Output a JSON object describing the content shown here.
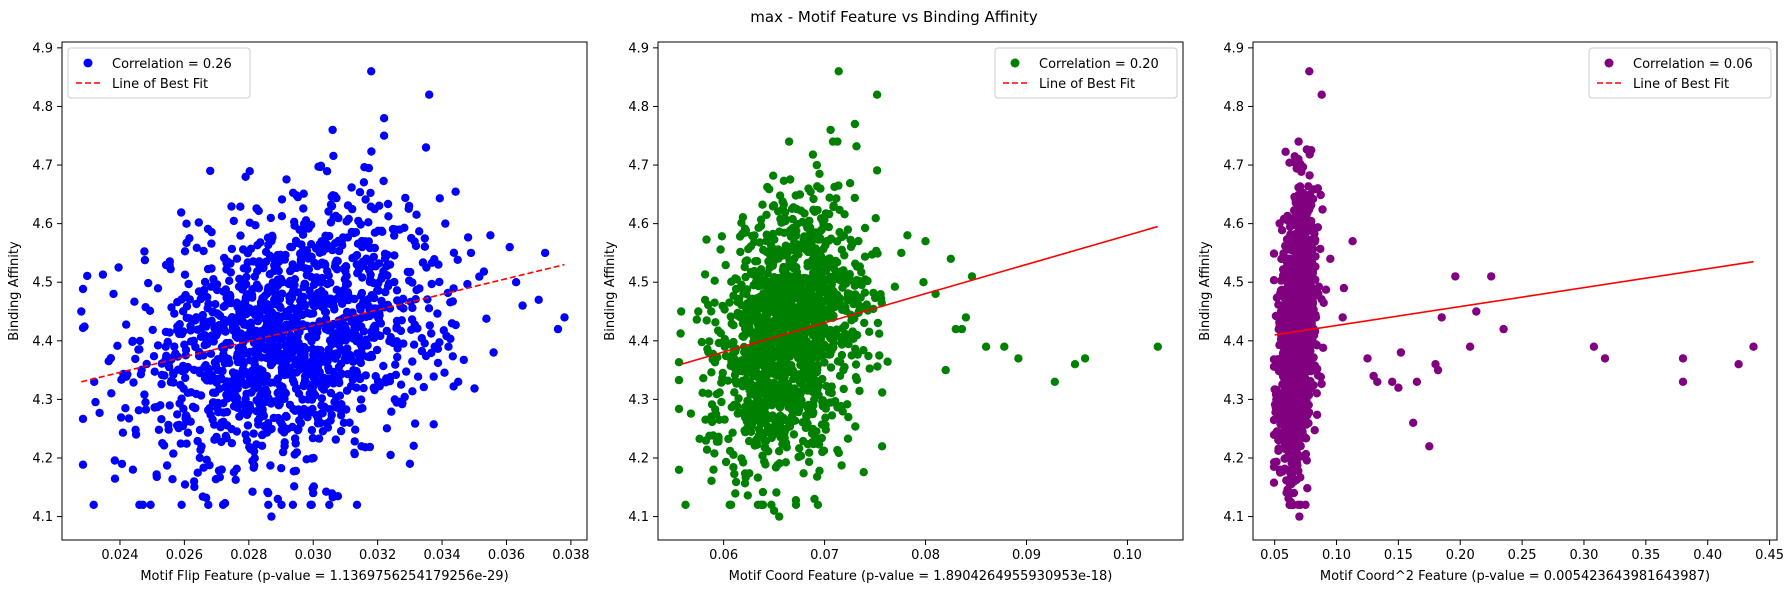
{
  "figure": {
    "suptitle": "max - Motif Feature vs Binding Affinity"
  },
  "chart_data": [
    {
      "type": "scatter",
      "xlabel": "Motif Flip Feature (p-value = 1.1369756254179256e-29)",
      "ylabel": "Binding Affinity",
      "xlim": [
        0.0222,
        0.0385
      ],
      "ylim": [
        4.06,
        4.91
      ],
      "xticks": [
        "0.024",
        "0.026",
        "0.028",
        "0.030",
        "0.032",
        "0.034",
        "0.036",
        "0.038"
      ],
      "yticks": [
        "4.1",
        "4.2",
        "4.3",
        "4.4",
        "4.5",
        "4.6",
        "4.7",
        "4.8",
        "4.9"
      ],
      "point_color": "#0000ff",
      "legend": {
        "location": "upper left",
        "entries": [
          "Correlation = 0.26",
          "Line of Best Fit"
        ]
      },
      "fit_line": {
        "color": "#ff0000",
        "style": "dashed",
        "x": [
          0.0228,
          0.0378
        ],
        "y": [
          4.33,
          4.53
        ]
      },
      "points": {
        "count": 1500,
        "x_mean": 0.0293,
        "x_sd": 0.00235,
        "y_mean": 4.41,
        "y_sd": 0.12,
        "notable": [
          [
            0.0228,
            4.45
          ],
          [
            0.0232,
            4.33
          ],
          [
            0.0244,
            4.18
          ],
          [
            0.0238,
            4.48
          ],
          [
            0.0318,
            4.86
          ],
          [
            0.0336,
            4.82
          ],
          [
            0.0322,
            4.78
          ],
          [
            0.0306,
            4.76
          ],
          [
            0.0289,
            4.13
          ],
          [
            0.03,
            4.14
          ],
          [
            0.0287,
            4.1
          ],
          [
            0.0315,
            4.22
          ],
          [
            0.0372,
            4.55
          ],
          [
            0.0376,
            4.42
          ],
          [
            0.0378,
            4.44
          ],
          [
            0.0361,
            4.56
          ],
          [
            0.0355,
            4.58
          ],
          [
            0.0363,
            4.5
          ],
          [
            0.0349,
            4.55
          ],
          [
            0.0341,
            4.6
          ],
          [
            0.0335,
            4.73
          ],
          [
            0.0322,
            4.75
          ],
          [
            0.0268,
            4.69
          ],
          [
            0.0279,
            4.68
          ],
          [
            0.0356,
            4.38
          ],
          [
            0.0365,
            4.46
          ],
          [
            0.037,
            4.47
          ],
          [
            0.0342,
            4.39
          ],
          [
            0.033,
            4.19
          ],
          [
            0.0345,
            4.33
          ],
          [
            0.0263,
            4.16
          ],
          [
            0.0245,
            4.24
          ]
        ]
      }
    },
    {
      "type": "scatter",
      "xlabel": "Motif Coord Feature (p-value = 1.8904264955930953e-18)",
      "ylabel": "Binding Affinity",
      "xlim": [
        0.0535,
        0.1055
      ],
      "ylim": [
        4.06,
        4.91
      ],
      "xticks": [
        "0.06",
        "0.07",
        "0.08",
        "0.09",
        "0.10"
      ],
      "yticks": [
        "4.1",
        "4.2",
        "4.3",
        "4.4",
        "4.5",
        "4.6",
        "4.7",
        "4.8",
        "4.9"
      ],
      "point_color": "#008000",
      "legend": {
        "location": "upper right",
        "entries": [
          "Correlation = 0.20",
          "Line of Best Fit"
        ]
      },
      "fit_line": {
        "color": "#ff0000",
        "style": "solid",
        "x": [
          0.0558,
          0.103
        ],
        "y": [
          4.36,
          4.595
        ]
      },
      "points": {
        "count": 1500,
        "x_mean": 0.0665,
        "x_sd": 0.0036,
        "y_mean": 4.41,
        "y_sd": 0.12,
        "notable": [
          [
            0.0558,
            4.45
          ],
          [
            0.059,
            4.18
          ],
          [
            0.0655,
            4.1
          ],
          [
            0.065,
            4.11
          ],
          [
            0.0714,
            4.86
          ],
          [
            0.0752,
            4.82
          ],
          [
            0.073,
            4.77
          ],
          [
            0.0706,
            4.76
          ],
          [
            0.103,
            4.39
          ],
          [
            0.0958,
            4.37
          ],
          [
            0.0948,
            4.36
          ],
          [
            0.0928,
            4.33
          ],
          [
            0.0892,
            4.37
          ],
          [
            0.0878,
            4.39
          ],
          [
            0.086,
            4.39
          ],
          [
            0.0846,
            4.51
          ],
          [
            0.082,
            4.35
          ],
          [
            0.083,
            4.42
          ],
          [
            0.0836,
            4.42
          ],
          [
            0.081,
            4.48
          ],
          [
            0.08,
            4.57
          ],
          [
            0.0776,
            4.55
          ],
          [
            0.0825,
            4.54
          ],
          [
            0.0757,
            4.22
          ],
          [
            0.069,
            4.13
          ],
          [
            0.0782,
            4.58
          ],
          [
            0.0798,
            4.5
          ],
          [
            0.084,
            4.44
          ]
        ]
      }
    },
    {
      "type": "scatter",
      "xlabel": "Motif Coord^2 Feature (p-value = 0.005423643981643987)",
      "ylabel": "Binding Affinity",
      "xlim": [
        0.0325,
        0.456
      ],
      "ylim": [
        4.06,
        4.91
      ],
      "xticks": [
        "0.05",
        "0.10",
        "0.15",
        "0.20",
        "0.25",
        "0.30",
        "0.35",
        "0.40",
        "0.45"
      ],
      "yticks": [
        "4.1",
        "4.2",
        "4.3",
        "4.4",
        "4.5",
        "4.6",
        "4.7",
        "4.8",
        "4.9"
      ],
      "point_color": "#800080",
      "legend": {
        "location": "upper right",
        "entries": [
          "Correlation = 0.06",
          "Line of Best Fit"
        ]
      },
      "fit_line": {
        "color": "#ff0000",
        "style": "solid",
        "x": [
          0.05,
          0.437
        ],
        "y": [
          4.41,
          4.535
        ]
      },
      "points": {
        "count": 1500,
        "x_mean": 0.0675,
        "x_sd": 0.0075,
        "y_mean": 4.41,
        "y_sd": 0.12,
        "notable": [
          [
            0.078,
            4.86
          ],
          [
            0.088,
            4.82
          ],
          [
            0.07,
            4.1
          ],
          [
            0.069,
            4.12
          ],
          [
            0.113,
            4.57
          ],
          [
            0.095,
            4.54
          ],
          [
            0.106,
            4.49
          ],
          [
            0.105,
            4.44
          ],
          [
            0.125,
            4.37
          ],
          [
            0.13,
            4.34
          ],
          [
            0.133,
            4.33
          ],
          [
            0.145,
            4.33
          ],
          [
            0.15,
            4.32
          ],
          [
            0.152,
            4.38
          ],
          [
            0.162,
            4.26
          ],
          [
            0.165,
            4.33
          ],
          [
            0.175,
            4.22
          ],
          [
            0.18,
            4.36
          ],
          [
            0.182,
            4.35
          ],
          [
            0.185,
            4.44
          ],
          [
            0.196,
            4.51
          ],
          [
            0.208,
            4.39
          ],
          [
            0.213,
            4.45
          ],
          [
            0.225,
            4.51
          ],
          [
            0.235,
            4.42
          ],
          [
            0.308,
            4.39
          ],
          [
            0.317,
            4.37
          ],
          [
            0.38,
            4.37
          ],
          [
            0.38,
            4.33
          ],
          [
            0.425,
            4.36
          ],
          [
            0.437,
            4.39
          ]
        ]
      }
    }
  ]
}
